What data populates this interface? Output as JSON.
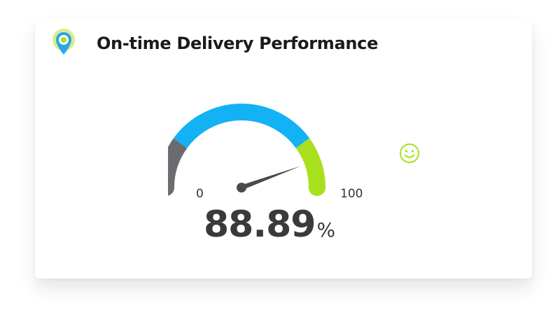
{
  "widget": {
    "title": "On-time Delivery Performance",
    "icon": "location-pin-icon"
  },
  "gauge": {
    "min_label": "0",
    "max_label": "100",
    "value": 88.89,
    "value_text": "88.89",
    "unit": "%",
    "status_icon": "smiley-face-icon",
    "segments": [
      {
        "from": 0,
        "to": 20,
        "color": "#6b6c70"
      },
      {
        "from": 20,
        "to": 80,
        "color": "#12b2f5"
      },
      {
        "from": 80,
        "to": 100,
        "color": "#a8e01c"
      }
    ]
  },
  "colors": {
    "pin_outer": "#2aa5e6",
    "pin_halo": "#d6ef8c",
    "smiley": "#a8e01c",
    "needle": "#4a4a4a"
  }
}
